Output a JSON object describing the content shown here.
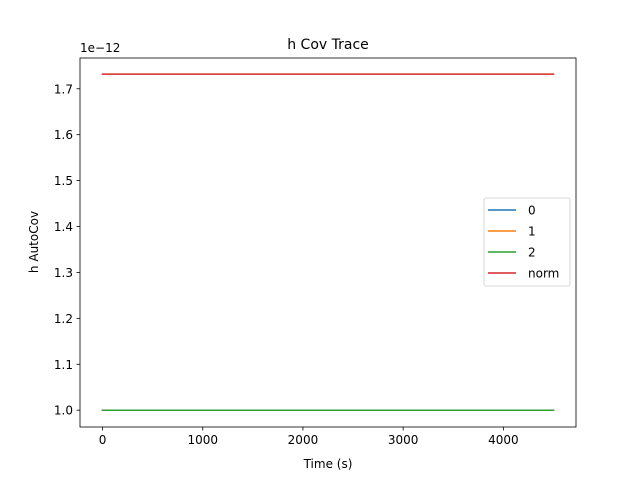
{
  "chart_data": {
    "type": "line",
    "title": "h Cov Trace",
    "xlabel": "Time (s)",
    "ylabel": "h AutoCov",
    "y_offset_text": "1e−12",
    "xlim": [
      -225,
      4725
    ],
    "ylim": [
      0.9634,
      1.767
    ],
    "xticks": [
      0,
      1000,
      2000,
      3000,
      4000
    ],
    "xtick_labels": [
      "0",
      "1000",
      "2000",
      "3000",
      "4000"
    ],
    "yticks": [
      1.0,
      1.1,
      1.2,
      1.3,
      1.4,
      1.5,
      1.6,
      1.7
    ],
    "ytick_labels": [
      "1.0",
      "1.1",
      "1.2",
      "1.3",
      "1.4",
      "1.5",
      "1.6",
      "1.7"
    ],
    "grid": false,
    "legend_position": "center-right",
    "x": [
      0,
      4500
    ],
    "series": [
      {
        "name": "0",
        "color": "#1f77b4",
        "values": [
          1.0,
          1.0
        ]
      },
      {
        "name": "1",
        "color": "#ff7f0e",
        "values": [
          1.0,
          1.0
        ]
      },
      {
        "name": "2",
        "color": "#2ca02c",
        "values": [
          1.0,
          1.0
        ]
      },
      {
        "name": "norm",
        "color": "#d62728",
        "values": [
          1.732,
          1.732
        ]
      }
    ]
  }
}
